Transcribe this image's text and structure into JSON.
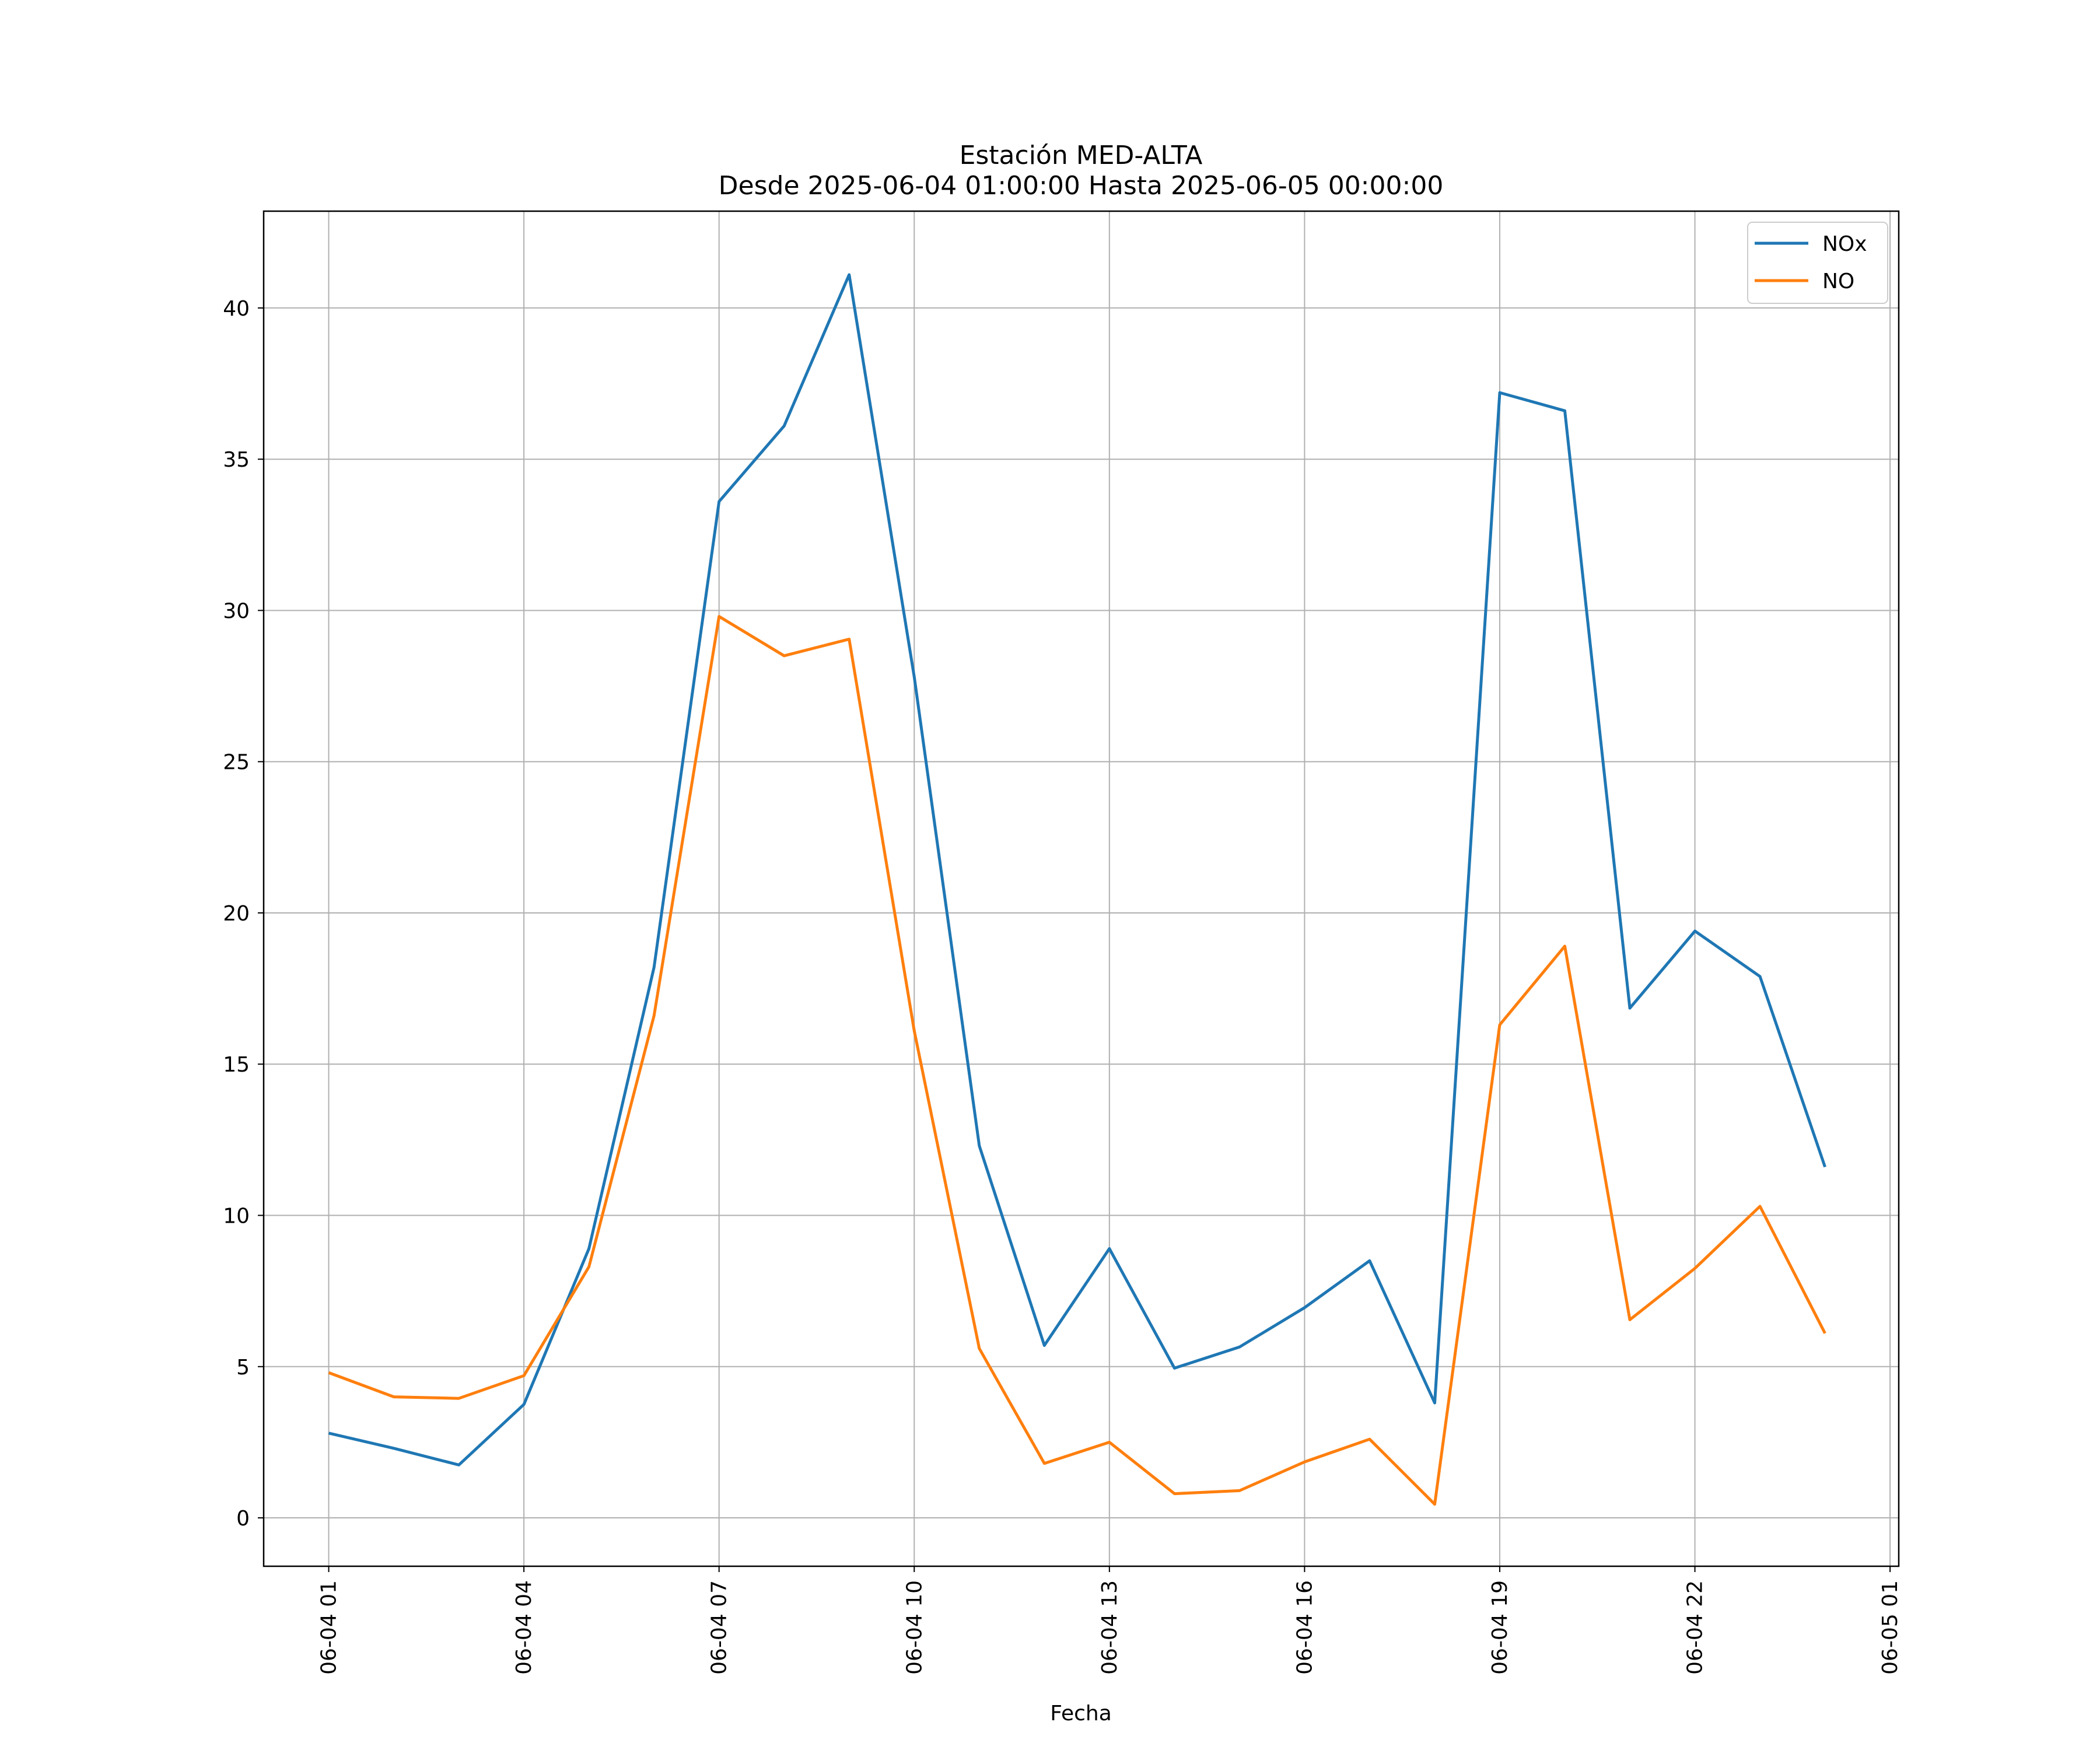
{
  "chart_data": {
    "type": "line",
    "title_line1": "Estación MED-ALTA",
    "title_line2": "Desde 2025-06-04 01:00:00 Hasta 2025-06-05 00:00:00",
    "xlabel": "Fecha",
    "ylabel": "",
    "x": [
      "2025-06-04 01:00",
      "2025-06-04 02:00",
      "2025-06-04 03:00",
      "2025-06-04 04:00",
      "2025-06-04 05:00",
      "2025-06-04 06:00",
      "2025-06-04 07:00",
      "2025-06-04 08:00",
      "2025-06-04 09:00",
      "2025-06-04 10:00",
      "2025-06-04 11:00",
      "2025-06-04 12:00",
      "2025-06-04 13:00",
      "2025-06-04 14:00",
      "2025-06-04 15:00",
      "2025-06-04 16:00",
      "2025-06-04 17:00",
      "2025-06-04 18:00",
      "2025-06-04 19:00",
      "2025-06-04 20:00",
      "2025-06-04 21:00",
      "2025-06-04 22:00",
      "2025-06-04 23:00",
      "2025-06-05 00:00"
    ],
    "xlim": [
      "2025-06-04 00:00",
      "2025-06-05 01:08"
    ],
    "ylim": [
      -1.6,
      43.2
    ],
    "xticks": [
      "06-04 01",
      "06-04 04",
      "06-04 07",
      "06-04 10",
      "06-04 13",
      "06-04 16",
      "06-04 19",
      "06-04 22",
      "06-05 01"
    ],
    "xtick_dates": [
      "2025-06-04 01:00",
      "2025-06-04 04:00",
      "2025-06-04 07:00",
      "2025-06-04 10:00",
      "2025-06-04 13:00",
      "2025-06-04 16:00",
      "2025-06-04 19:00",
      "2025-06-04 22:00",
      "2025-06-05 01:00"
    ],
    "yticks": [
      0,
      5,
      10,
      15,
      20,
      25,
      30,
      35,
      40
    ],
    "grid": true,
    "legend_position": "top-right",
    "series": [
      {
        "name": "NOx",
        "color": "#1f77b4",
        "values": [
          2.8,
          2.3,
          1.75,
          3.75,
          8.9,
          18.2,
          33.6,
          36.1,
          41.1,
          27.8,
          12.3,
          5.7,
          8.9,
          4.95,
          5.65,
          6.95,
          8.5,
          3.8,
          37.2,
          36.6,
          16.85,
          19.4,
          17.9,
          11.6
        ]
      },
      {
        "name": "NO",
        "color": "#ff7f0e",
        "values": [
          4.8,
          4.0,
          3.95,
          4.7,
          8.3,
          16.6,
          29.8,
          28.5,
          29.05,
          16.1,
          5.6,
          1.8,
          2.5,
          0.8,
          0.9,
          1.85,
          2.6,
          0.45,
          16.3,
          18.9,
          6.55,
          8.25,
          10.3,
          6.1
        ]
      }
    ]
  }
}
